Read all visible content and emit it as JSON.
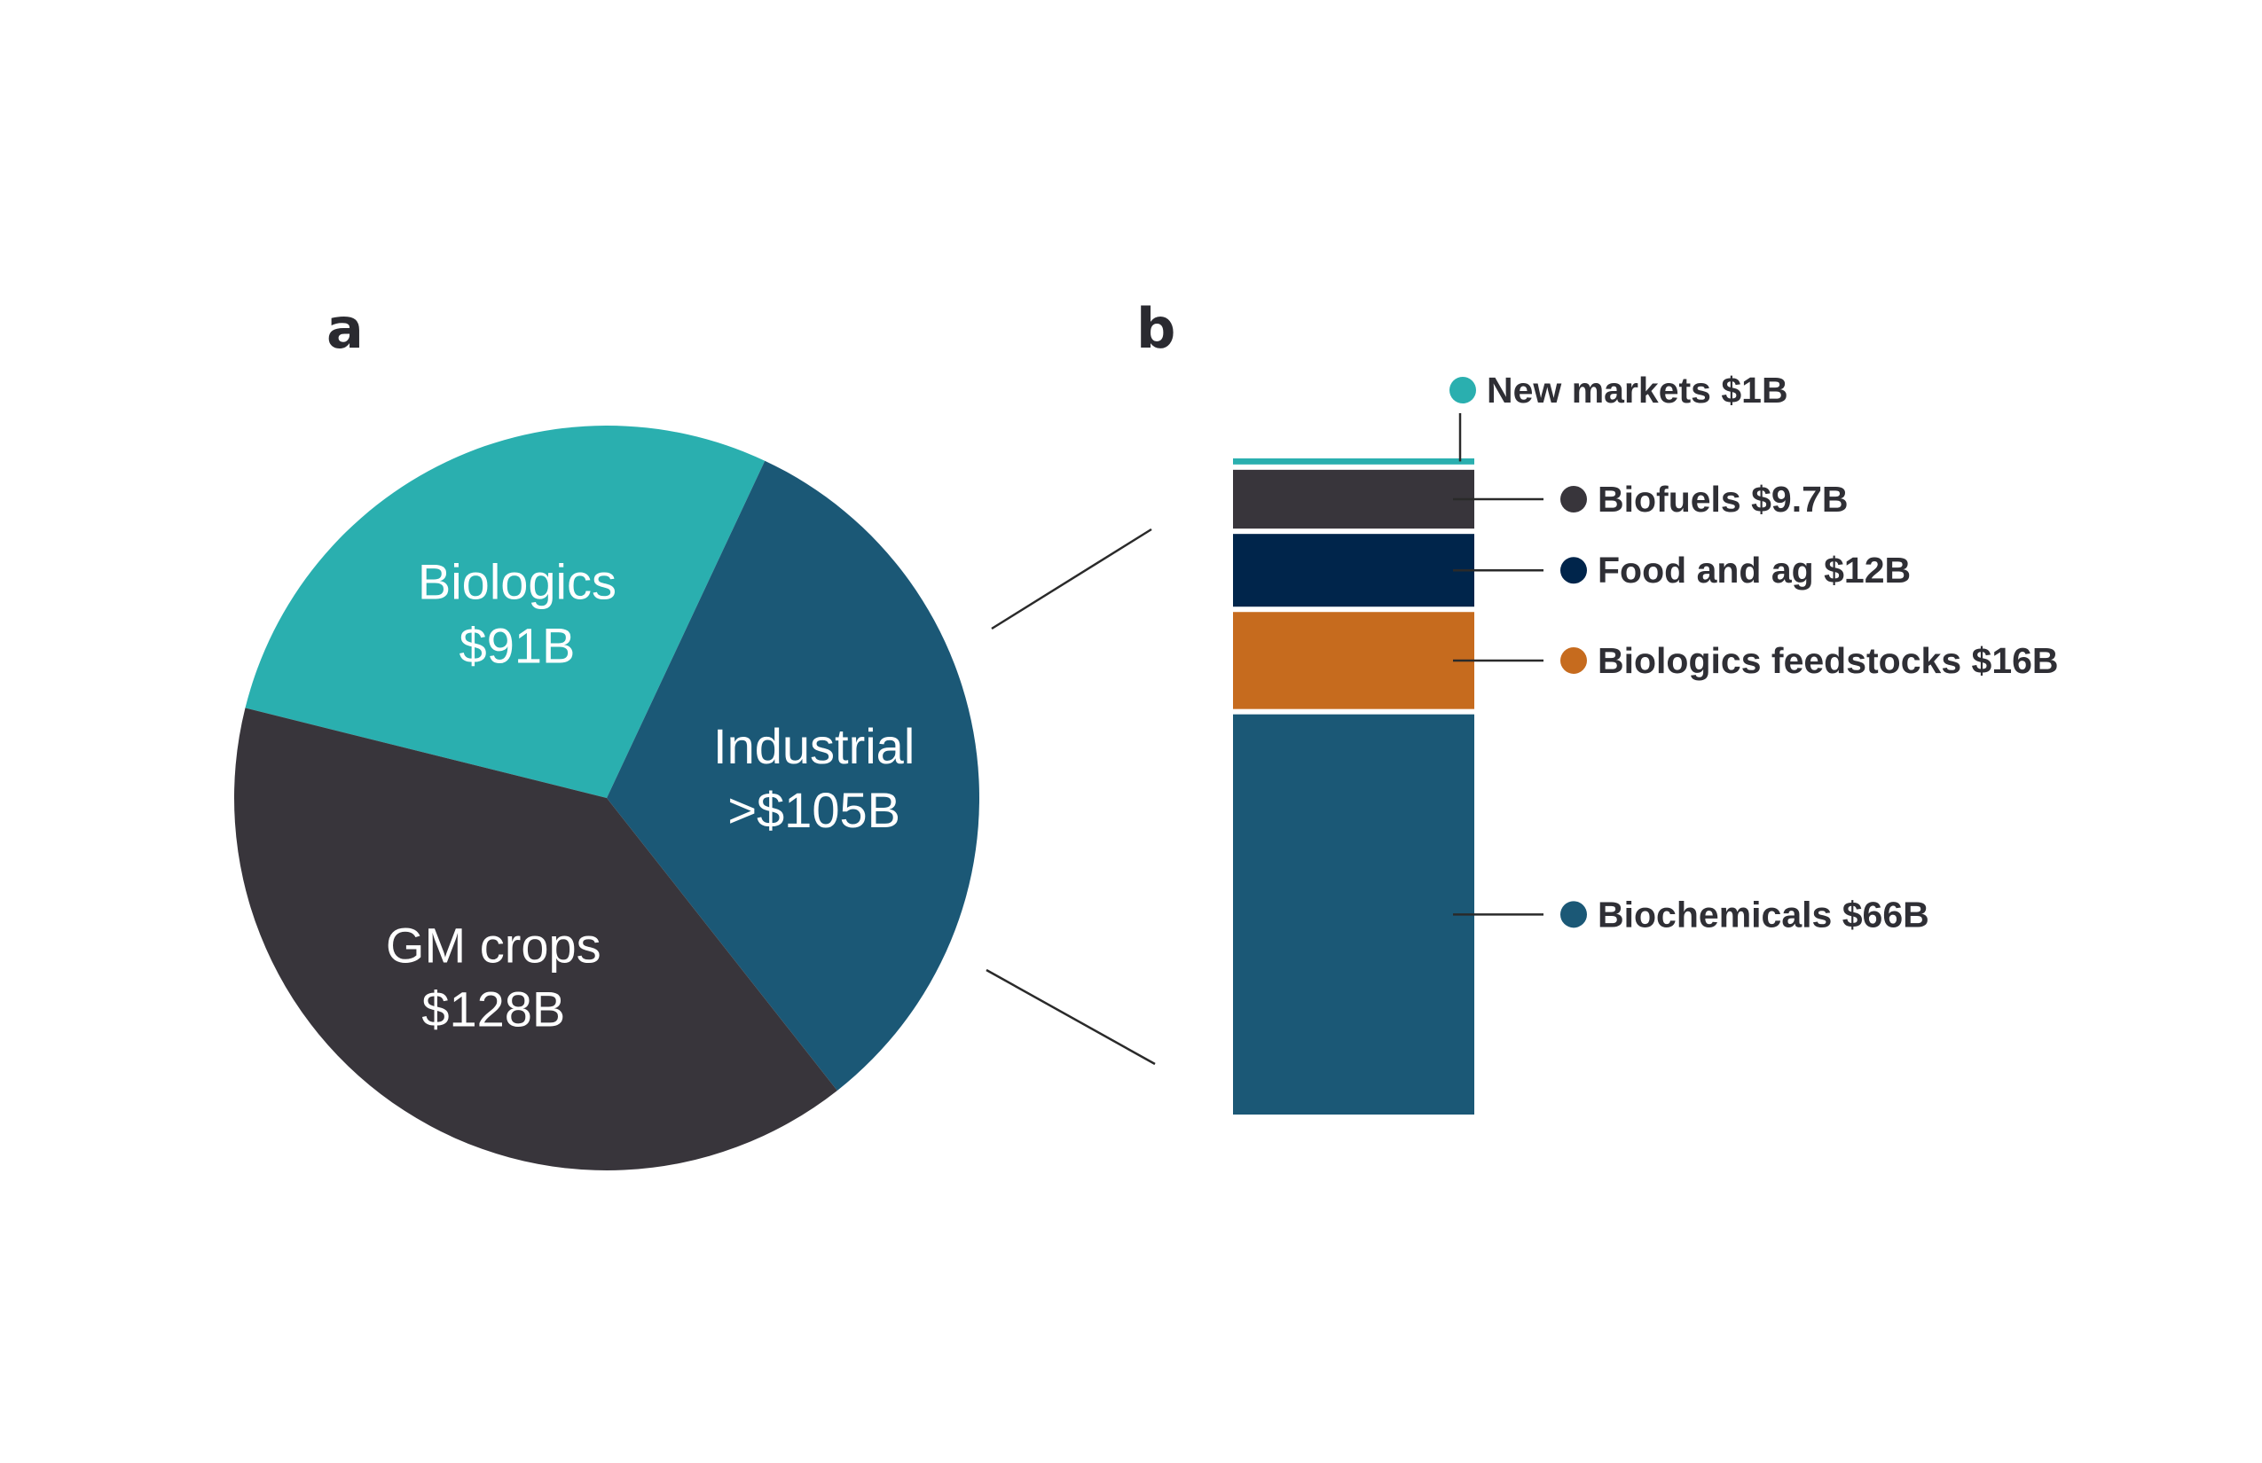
{
  "panels": {
    "a": "a",
    "b": "b"
  },
  "chart_data": [
    {
      "type": "pie",
      "panel": "a",
      "title": "",
      "slices": [
        {
          "name": "Biologics",
          "value": 91,
          "display": "$91B",
          "color": "#2aafaf"
        },
        {
          "name": "Industrial",
          "value": 105,
          "display": ">$105B",
          "color": "#1b5876"
        },
        {
          "name": "GM crops",
          "value": 128,
          "display": "$128B",
          "color": "#38353b"
        }
      ]
    },
    {
      "type": "bar",
      "stacked": true,
      "panel": "b",
      "title": "",
      "segments": [
        {
          "name": "New markets",
          "value": 1,
          "display": "New markets $1B",
          "color": "#2aafaf"
        },
        {
          "name": "Biofuels",
          "value": 9.7,
          "display": "Biofuels $9.7B",
          "color": "#38353b"
        },
        {
          "name": "Food and ag",
          "value": 12,
          "display": "Food and ag $12B",
          "color": "#00254b"
        },
        {
          "name": "Biologics feedstocks",
          "value": 16,
          "display": "Biologics feedstocks $16B",
          "color": "#c66b1e"
        },
        {
          "name": "Biochemicals",
          "value": 66,
          "display": "Biochemicals $66B",
          "color": "#1b5876"
        }
      ]
    }
  ]
}
